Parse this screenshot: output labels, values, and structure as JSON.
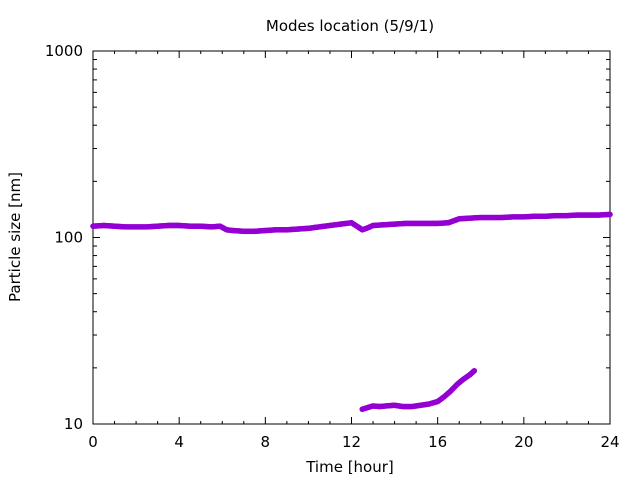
{
  "chart_data": {
    "type": "scatter",
    "title": "Modes location (5/9/1)",
    "xlabel": "Time [hour]",
    "ylabel": "Particle size [nm]",
    "xlim": [
      0,
      24
    ],
    "ylim": [
      10,
      1000
    ],
    "y_scale": "log",
    "grid": false,
    "x_ticks": [
      0,
      4,
      8,
      12,
      16,
      20,
      24
    ],
    "x_tick_labels": [
      "0",
      "4",
      "8",
      "12",
      "16",
      "20",
      "24"
    ],
    "y_ticks": [
      10,
      100,
      1000
    ],
    "y_tick_labels": [
      "10",
      "100",
      "1000"
    ],
    "marker_color": "#9400D3",
    "series": [
      {
        "x": [
          0,
          0.5,
          1,
          1.5,
          2,
          2.5,
          3,
          3.5,
          4,
          4.5,
          5,
          5.5,
          5.9,
          6.2,
          6.5,
          7,
          7.5,
          8,
          8.5,
          9,
          9.5,
          10,
          10.5,
          11,
          11.5,
          12,
          12.3,
          12.5,
          12.7,
          13,
          13.5,
          14,
          14.5,
          15,
          15.5,
          16,
          16.5,
          17,
          17.5,
          18,
          18.5,
          19,
          19.5,
          20,
          20.5,
          21,
          21.5,
          22,
          22.5,
          23,
          23.5,
          24
        ],
        "y": [
          115,
          116,
          115,
          114,
          114,
          114,
          115,
          116,
          116,
          115,
          115,
          114,
          115,
          110,
          109,
          108,
          108,
          109,
          110,
          110,
          111,
          112,
          114,
          116,
          118,
          120,
          114,
          110,
          112,
          116,
          117,
          118,
          119,
          119,
          119,
          119,
          120,
          126,
          127,
          128,
          128,
          128,
          129,
          129,
          130,
          130,
          131,
          131,
          132,
          132,
          132,
          133
        ]
      },
      {
        "x": [
          12.5,
          12.8,
          13,
          13.3,
          13.6,
          14,
          14.4,
          14.8,
          15.2,
          15.6,
          16,
          16.3,
          16.6,
          16.9,
          17.2,
          17.5,
          17.7
        ],
        "y": [
          12.0,
          12.3,
          12.5,
          12.4,
          12.5,
          12.6,
          12.4,
          12.4,
          12.6,
          12.8,
          13.2,
          14.0,
          15.0,
          16.3,
          17.4,
          18.4,
          19.3
        ]
      }
    ]
  }
}
